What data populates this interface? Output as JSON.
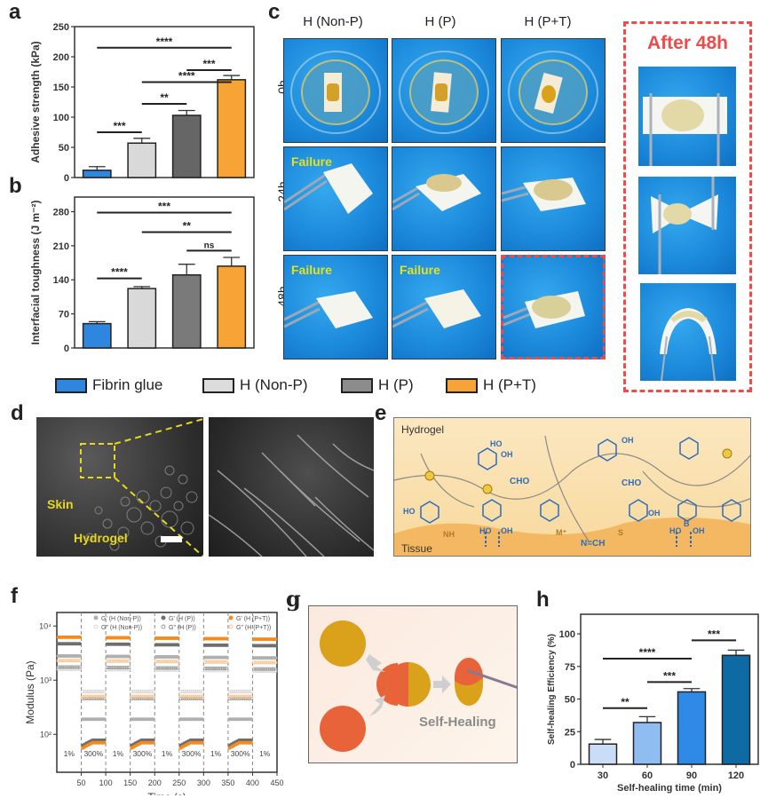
{
  "panels": {
    "a": "a",
    "b": "b",
    "c": "c",
    "d": "d",
    "e": "e",
    "f": "f",
    "g": "g",
    "h": "h"
  },
  "colors": {
    "fibrin_glue": "#2e86de",
    "h_non_p": "#d9d9d9",
    "h_p": "#6b6b6b",
    "h_p_t": "#f7a335",
    "dashed_red": "#ee4b4b",
    "annot_yellow": "#e6d81a"
  },
  "legend": [
    {
      "label": "Fibrin glue",
      "color": "#2e86de"
    },
    {
      "label": "H (Non-P)",
      "color": "#dcdcdc"
    },
    {
      "label": "H (P)",
      "color": "#8c8c8c"
    },
    {
      "label": "H (P+T)",
      "color": "#f7a335"
    }
  ],
  "panel_c": {
    "columns": [
      "H (Non-P)",
      "H (P)",
      "H (P+T)"
    ],
    "rows": [
      "0h",
      "24h",
      "48h"
    ],
    "failure_label": "Failure",
    "failures": [
      [
        false,
        false,
        false
      ],
      [
        true,
        false,
        false
      ],
      [
        true,
        true,
        false
      ]
    ],
    "after_title": "After 48h"
  },
  "panel_d": {
    "skin_label": "Skin",
    "hydrogel_label": "Hydrogel"
  },
  "panel_e": {
    "hydrogel_label": "Hydrogel",
    "tissue_label": "Tissue",
    "chem_labels": [
      "HO",
      "OH",
      "CHO",
      "CHO",
      "NH",
      "M⁺",
      "N=CH",
      "S",
      "OH",
      "HO",
      "OH",
      "HO",
      "OH",
      "B",
      "HO",
      "OH"
    ]
  },
  "panel_g": {
    "caption": "Self-Healing"
  },
  "chart_data": [
    {
      "id": "a",
      "type": "bar",
      "title": "",
      "xlabel": "",
      "ylabel": "Adhesive strength (kPa)",
      "categories": [
        "Fibrin glue",
        "H (Non-P)",
        "H (P)",
        "H (P+T)"
      ],
      "values": [
        12,
        57,
        103,
        162
      ],
      "errors": [
        6,
        8,
        8,
        7
      ],
      "colors": [
        "#2e86de",
        "#d9d9d9",
        "#666666",
        "#f7a335"
      ],
      "ylim": [
        0,
        250
      ],
      "yticks": [
        0,
        50,
        100,
        150,
        200,
        250
      ],
      "significance": [
        {
          "from": 0,
          "to": 1,
          "label": "***",
          "y": 75
        },
        {
          "from": 1,
          "to": 2,
          "label": "**",
          "y": 122
        },
        {
          "from": 1,
          "to": 3,
          "label": "****",
          "y": 158
        },
        {
          "from": 2,
          "to": 3,
          "label": "***",
          "y": 178
        },
        {
          "from": 0,
          "to": 3,
          "label": "****",
          "y": 215
        }
      ]
    },
    {
      "id": "b",
      "type": "bar",
      "title": "",
      "xlabel": "",
      "ylabel": "Interfacial toughness (J m⁻²)",
      "categories": [
        "Fibrin glue",
        "H (Non-P)",
        "H (P)",
        "H (P+T)"
      ],
      "values": [
        50,
        122,
        150,
        168
      ],
      "errors": [
        4,
        4,
        22,
        18
      ],
      "colors": [
        "#2e86de",
        "#d9d9d9",
        "#7a7a7a",
        "#f7a335"
      ],
      "ylim": [
        0,
        310
      ],
      "yticks": [
        0,
        70,
        140,
        210,
        280
      ],
      "significance": [
        {
          "from": 0,
          "to": 1,
          "label": "****",
          "y": 143
        },
        {
          "from": 2,
          "to": 3,
          "label": "ns",
          "y": 200
        },
        {
          "from": 1,
          "to": 3,
          "label": "**",
          "y": 238
        },
        {
          "from": 0,
          "to": 3,
          "label": "***",
          "y": 278
        }
      ]
    },
    {
      "id": "f",
      "type": "scatter",
      "title": "",
      "xlabel": "Time (s)",
      "ylabel": "Modulus (Pa)",
      "yscale": "log",
      "xlim": [
        0,
        450
      ],
      "ylim_log10": [
        1.3,
        4.25
      ],
      "xticks": [
        50,
        100,
        150,
        200,
        250,
        300,
        350,
        400,
        450
      ],
      "yticks": [
        {
          "value": 100,
          "label": "10²"
        },
        {
          "value": 1000,
          "label": "10³"
        },
        {
          "value": 10000,
          "label": "10⁴"
        }
      ],
      "strain_labels": [
        "1%",
        "300%",
        "1%",
        "300%",
        "1%",
        "300%",
        "1%",
        "300%",
        "1%"
      ],
      "segment_bounds": [
        0,
        50,
        100,
        150,
        200,
        250,
        300,
        350,
        400,
        450
      ],
      "series": [
        {
          "name": "G' (H (Non-P))",
          "marker": "filled",
          "color": "#b0b0b0",
          "low_strain": 2800,
          "high_strain": 190
        },
        {
          "name": "G\" (H (Non-P))",
          "marker": "open",
          "color": "#d8d8d8",
          "low_strain": 1600,
          "high_strain": 620
        },
        {
          "name": "G' (H (P))",
          "marker": "filled",
          "color": "#6e6e6e",
          "low_strain": 4700,
          "high_strain": 78
        },
        {
          "name": "G\" (H (P))",
          "marker": "open",
          "color": "#9a9a9a",
          "low_strain": 1750,
          "high_strain": 460
        },
        {
          "name": "G' (H (P+T))",
          "marker": "filled",
          "color": "#f58a1f",
          "low_strain": 6200,
          "high_strain": 70
        },
        {
          "name": "G\" (H (P+T))",
          "marker": "open",
          "color": "#f9c48e",
          "low_strain": 2300,
          "high_strain": 500
        }
      ]
    },
    {
      "id": "h",
      "type": "bar",
      "title": "",
      "xlabel": "Self-healing time (min)",
      "ylabel": "Self-healing Efficiency (%)",
      "categories": [
        "30",
        "60",
        "90",
        "120"
      ],
      "values": [
        15.5,
        32,
        55.5,
        83.5
      ],
      "errors": [
        3.5,
        4.5,
        2.5,
        4
      ],
      "colors": [
        "#c9ddf7",
        "#8fbdf2",
        "#2f89e6",
        "#0d6aa3"
      ],
      "ylim": [
        0,
        115
      ],
      "yticks": [
        0,
        25,
        50,
        75,
        100
      ],
      "significance": [
        {
          "from": 0,
          "to": 1,
          "label": "**",
          "y": 43
        },
        {
          "from": 1,
          "to": 2,
          "label": "***",
          "y": 63
        },
        {
          "from": 0,
          "to": 2,
          "label": "****",
          "y": 81
        },
        {
          "from": 2,
          "to": 3,
          "label": "***",
          "y": 95
        }
      ]
    }
  ]
}
